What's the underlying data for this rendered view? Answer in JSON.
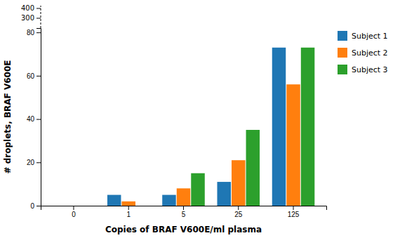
{
  "chart_data": {
    "type": "bar",
    "categories": [
      "0",
      "1",
      "5",
      "25",
      "125"
    ],
    "series": [
      {
        "name": "Subject 1",
        "values": [
          0,
          5,
          5,
          11,
          73
        ]
      },
      {
        "name": "Subject 2",
        "values": [
          0,
          2,
          8,
          21,
          56
        ]
      },
      {
        "name": "Subject 3",
        "values": [
          0,
          0,
          15,
          35,
          73
        ]
      }
    ],
    "xlabel": "Copies of BRAF V600E/ml plasma",
    "ylabel": "# droplets, BRAF V600E",
    "ylim": [
      0,
      82
    ],
    "yticks": [
      0,
      20,
      40,
      60,
      80
    ],
    "grid": false,
    "legend": "right",
    "annotations": [
      "400",
      "300"
    ]
  }
}
